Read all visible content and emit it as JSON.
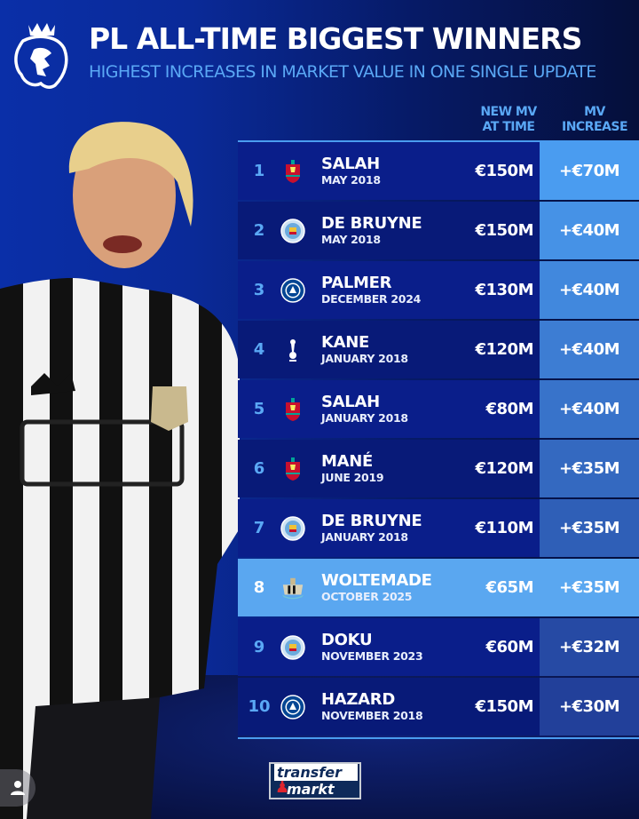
{
  "header": {
    "title": "PL ALL-TIME BIGGEST WINNERS",
    "subtitle": "HIGHEST INCREASES IN MARKET VALUE IN ONE SINGLE UPDATE",
    "logo_icon": "premier-league-lion-icon"
  },
  "columns": {
    "new_mv_line1": "NEW MV",
    "new_mv_line2": "AT TIME",
    "increase_line1": "MV",
    "increase_line2": "INCREASE"
  },
  "rows": [
    {
      "rank": "1",
      "name": "SALAH",
      "date": "MAY 2018",
      "club_icon": "liverpool-crest-icon",
      "new_mv": "€150M",
      "increase": "+€70M"
    },
    {
      "rank": "2",
      "name": "DE BRUYNE",
      "date": "MAY 2018",
      "club_icon": "man-city-crest-icon",
      "new_mv": "€150M",
      "increase": "+€40M"
    },
    {
      "rank": "3",
      "name": "PALMER",
      "date": "DECEMBER 2024",
      "club_icon": "chelsea-crest-icon",
      "new_mv": "€130M",
      "increase": "+€40M"
    },
    {
      "rank": "4",
      "name": "KANE",
      "date": "JANUARY 2018",
      "club_icon": "tottenham-crest-icon",
      "new_mv": "€120M",
      "increase": "+€40M"
    },
    {
      "rank": "5",
      "name": "SALAH",
      "date": "JANUARY 2018",
      "club_icon": "liverpool-crest-icon",
      "new_mv": "€80M",
      "increase": "+€40M"
    },
    {
      "rank": "6",
      "name": "MANÉ",
      "date": "JUNE 2019",
      "club_icon": "liverpool-crest-icon",
      "new_mv": "€120M",
      "increase": "+€35M"
    },
    {
      "rank": "7",
      "name": "DE BRUYNE",
      "date": "JANUARY 2018",
      "club_icon": "man-city-crest-icon",
      "new_mv": "€110M",
      "increase": "+€35M"
    },
    {
      "rank": "8",
      "name": "WOLTEMADE",
      "date": "OCTOBER 2025",
      "club_icon": "newcastle-crest-icon",
      "new_mv": "€65M",
      "increase": "+€35M",
      "highlighted": true
    },
    {
      "rank": "9",
      "name": "DOKU",
      "date": "NOVEMBER 2023",
      "club_icon": "man-city-crest-icon",
      "new_mv": "€60M",
      "increase": "+€32M"
    },
    {
      "rank": "10",
      "name": "HAZARD",
      "date": "NOVEMBER 2018",
      "club_icon": "chelsea-crest-icon",
      "new_mv": "€150M",
      "increase": "+€30M"
    }
  ],
  "footer": {
    "brand_line1": "transfer",
    "brand_line2": "markt"
  },
  "colors": {
    "accent": "#5aa8f5",
    "highlight_row": "#5aa7f0",
    "row_bg": "#0a1e8a",
    "increase_top": "#4a9cf0",
    "increase_bottom": "#22409a"
  }
}
